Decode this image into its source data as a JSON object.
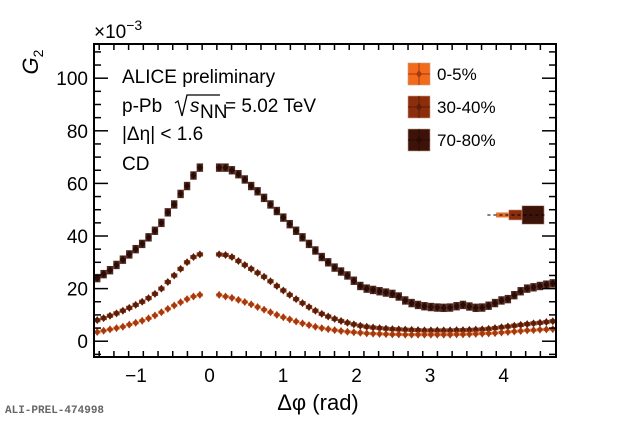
{
  "chart_data": {
    "type": "scatter",
    "title": "",
    "xlabel": "Δφ (rad)",
    "ylabel": "G",
    "ylabel_sub": "2",
    "y_multiplier": "×10",
    "y_multiplier_exp": "−3",
    "xlim": [
      -1.5708,
      4.7124
    ],
    "ylim": [
      -6,
      113
    ],
    "x_ticks": [
      -1,
      0,
      1,
      2,
      3,
      4
    ],
    "x_tick_labels": [
      "−1",
      "0",
      "1",
      "2",
      "3",
      "4"
    ],
    "y_ticks": [
      0,
      20,
      40,
      60,
      80,
      100
    ],
    "y_tick_labels": [
      "0",
      "20",
      "40",
      "60",
      "80",
      "100"
    ],
    "grid": false,
    "legend_position": "top-right",
    "annotations": {
      "experiment": "ALICE preliminary",
      "system_prefix": "p-Pb",
      "sqrt_s": "s",
      "sqrt_s_sub": "NN",
      "energy": "= 5.02 TeV",
      "eta_cut": "|Δη| < 1.6",
      "label": "CD"
    },
    "watermark": "ALI-PREL-474998",
    "bin_centers": [
      -1.527,
      -1.44,
      -1.353,
      -1.265,
      -1.178,
      -1.091,
      -1.004,
      -0.916,
      -0.829,
      -0.742,
      -0.654,
      -0.567,
      -0.48,
      -0.393,
      -0.305,
      -0.218,
      -0.131,
      -0.044,
      0.044,
      0.131,
      0.218,
      0.305,
      0.393,
      0.48,
      0.567,
      0.654,
      0.742,
      0.829,
      0.916,
      1.004,
      1.091,
      1.178,
      1.265,
      1.353,
      1.44,
      1.527,
      1.614,
      1.702,
      1.789,
      1.876,
      1.963,
      2.051,
      2.138,
      2.225,
      2.313,
      2.4,
      2.487,
      2.574,
      2.662,
      2.749,
      2.836,
      2.923,
      3.011,
      3.098,
      3.185,
      3.272,
      3.36,
      3.447,
      3.534,
      3.621,
      3.709,
      3.796,
      3.883,
      3.971,
      4.058,
      4.145,
      4.232,
      4.32,
      4.407,
      4.494,
      4.581,
      4.669
    ],
    "excluded_region": [
      -0.09,
      0.09
    ],
    "series": [
      {
        "name": "0-5%",
        "color": "#f26b1d",
        "marker_color": "#a33a10",
        "values": [
          3.5,
          4.0,
          4.5,
          5.0,
          5.5,
          6.3,
          7.0,
          7.8,
          8.7,
          9.8,
          11.0,
          12.3,
          13.6,
          14.8,
          16.0,
          17.0,
          17.6,
          17.8,
          17.8,
          17.6,
          17.0,
          16.5,
          15.7,
          14.9,
          14.0,
          13.0,
          12.0,
          11.0,
          10.0,
          9.1,
          8.3,
          7.5,
          6.8,
          6.1,
          5.5,
          5.0,
          4.6,
          4.2,
          3.9,
          3.6,
          3.4,
          3.2,
          3.0,
          2.9,
          2.8,
          2.7,
          2.6,
          2.6,
          2.5,
          2.5,
          2.5,
          2.5,
          2.5,
          2.5,
          2.5,
          2.5,
          2.6,
          2.6,
          2.7,
          2.8,
          2.9,
          3.0,
          3.1,
          3.3,
          3.5,
          3.7,
          3.9,
          4.1,
          4.2,
          4.4,
          4.5,
          4.6
        ]
      },
      {
        "name": "30-40%",
        "color": "#8c2e0c",
        "marker_color": "#5a1e08",
        "values": [
          8.0,
          8.8,
          9.7,
          10.6,
          11.6,
          12.7,
          13.8,
          15.0,
          16.4,
          18.0,
          20.0,
          22.5,
          25.0,
          27.5,
          30.0,
          32.0,
          33.0,
          33.3,
          33.3,
          33.0,
          32.8,
          32.0,
          30.5,
          29.0,
          27.5,
          26.0,
          24.5,
          22.8,
          21.0,
          19.3,
          17.6,
          16.0,
          14.5,
          13.0,
          11.6,
          10.4,
          9.4,
          8.5,
          7.7,
          7.0,
          6.4,
          5.9,
          5.5,
          5.2,
          5.0,
          4.8,
          4.6,
          4.5,
          4.4,
          4.3,
          4.2,
          4.1,
          4.1,
          4.1,
          4.1,
          4.1,
          4.2,
          4.2,
          4.3,
          4.4,
          4.5,
          4.7,
          5.0,
          5.3,
          5.6,
          5.9,
          6.2,
          6.5,
          6.8,
          7.0,
          7.3,
          7.6
        ]
      },
      {
        "name": "70-80%",
        "color": "#3d1208",
        "marker_color": "#2a0c05",
        "values": [
          24.0,
          25.5,
          27.0,
          29.0,
          31.0,
          33.0,
          35.0,
          37.0,
          39.5,
          42.0,
          45.0,
          49.0,
          52.0,
          56.0,
          59.0,
          63.0,
          66.0,
          66.5,
          66.5,
          66.0,
          66.0,
          65.0,
          63.5,
          61.5,
          59.0,
          57.0,
          54.5,
          52.0,
          49.5,
          47.0,
          44.5,
          42.0,
          39.5,
          37.0,
          34.5,
          32.0,
          30.0,
          28.0,
          26.5,
          25.0,
          23.0,
          21.0,
          20.0,
          19.5,
          19.0,
          18.5,
          18.0,
          17.0,
          15.5,
          14.5,
          13.8,
          13.3,
          13.0,
          12.8,
          12.7,
          12.8,
          13.3,
          13.8,
          13.2,
          12.7,
          12.8,
          13.5,
          14.5,
          15.5,
          16.0,
          17.5,
          19.0,
          20.0,
          20.5,
          21.0,
          21.5,
          22.0
        ]
      }
    ],
    "systematic_boxes": [
      {
        "name": "0-5%",
        "value": 48,
        "half_width": 0.15,
        "half_height": 0.9
      },
      {
        "name": "30-40%",
        "value": 48,
        "half_width": 0.15,
        "half_height": 1.9
      },
      {
        "name": "70-80%",
        "value": 48,
        "half_width": 0.15,
        "half_height": 3.5
      }
    ]
  }
}
